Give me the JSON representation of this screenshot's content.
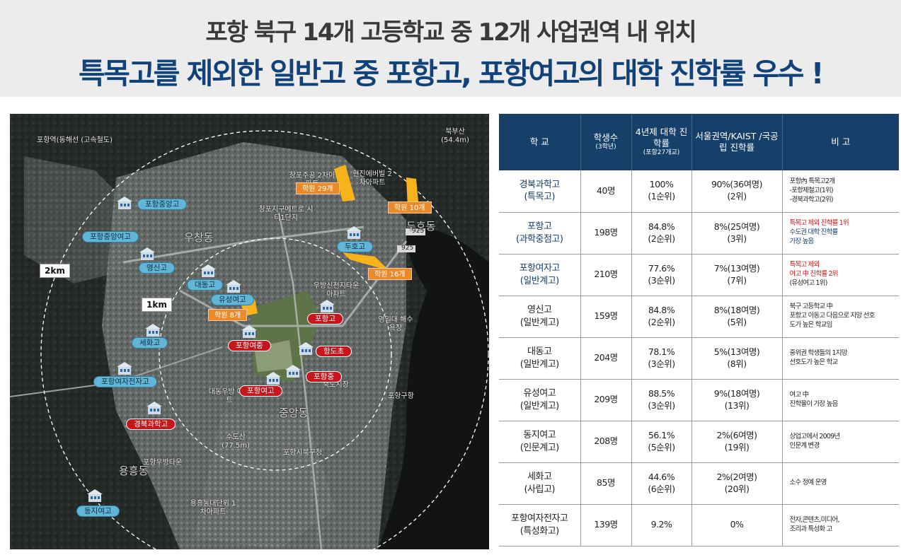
{
  "header": {
    "title_line1": "포항 북구 14개 고등학교 중 12개 사업권역 내 위치",
    "title_line2": "특목고를 제외한 일반고 중 포항고, 포항여고의 대학 진학률 우수 !"
  },
  "map": {
    "rings": [
      "2km",
      "1km"
    ],
    "places": {
      "station": "포항역(동해선 (고속철도)",
      "dusan": "북부산 (54.4m)",
      "dwell1": "창포주공 2차아파트",
      "dwell2": "현진에버빌 2차아파트",
      "dwell3": "창포지구메트로 시티1단지",
      "uchang": "우창동",
      "duho": "두호동",
      "woobang": "우방신천지타운 아파트",
      "yeonil": "영일대 해수욕장",
      "daedong": "대동우방 아파트",
      "jungang": "중앙동",
      "sunosan": "수도산 (77.5m)",
      "bukgu_office": "포항시북구청",
      "woobang_town": "포항우방타운",
      "yongheung": "용흥동",
      "yongheung_apt": "용흥동대단위 1차아파트",
      "port": "포항구항",
      "market": "죽도시장",
      "road925a": "925",
      "road925b": "925",
      "road925c": "925"
    },
    "schools": {
      "pohang_jungang": "포항중앙고",
      "pohang_jungang_girls": "포항중앙여고",
      "yeongsin": "영신고",
      "daedong": "대동고",
      "yuseong": "유성여고",
      "seha": "세화고",
      "pohang_girls_elec": "포항여자전자고",
      "gyeongbuk_sci": "경북과학고",
      "donggi": "동지여고",
      "duho": "두호고",
      "pohang_high": "포항고",
      "pohang_girls_mid": "포항여중",
      "hangdo": "항도초",
      "pohang_mid": "포항중",
      "pohang_girls_high": "포항여고"
    },
    "academies": {
      "a29": "학원 29개",
      "a10": "학원 10개",
      "a16": "학원 16개",
      "a8": "학원 8개"
    },
    "colors": {
      "academy": "#e98b2a",
      "school_red": "#c4161c",
      "school_blue": "#63b5d5"
    }
  },
  "table": {
    "headers": {
      "school": "학 교",
      "students": "학생수",
      "students_sub": "(3학년)",
      "univ": "4년제 대학 진학률",
      "univ_sub": "(포항27개교)",
      "seoul": "서울권역/KAIST /국공립 진학률",
      "note": "비 고"
    },
    "rows": [
      {
        "name": "경북과학고",
        "type": "(특목고)",
        "students": "40명",
        "univ": "100%",
        "univ_rank": "(1순위)",
        "seoul": "90%(36여명)",
        "seoul_rank": "(2위)",
        "notes": [
          {
            "t": "포항內 특목고2개",
            "c": "black"
          },
          {
            "t": "-포항제철고(1위)",
            "c": "black"
          },
          {
            "t": "-경북과학고(2위)",
            "c": "black"
          }
        ]
      },
      {
        "name": "포항고",
        "type": "(과학중점고)",
        "students": "198명",
        "univ": "84.8%",
        "univ_rank": "(2순위)",
        "seoul": "8%(25여명)",
        "seoul_rank": "(3위)",
        "notes": [
          {
            "t": "특목고 제외 진학률 1위",
            "c": "red"
          },
          {
            "t": "수도권 대학 진학률",
            "c": "navy"
          },
          {
            "t": "가장 높음",
            "c": "navy"
          }
        ]
      },
      {
        "name": "포항여자고",
        "type": "(일반계고)",
        "students": "210명",
        "univ": "77.6%",
        "univ_rank": "(3순위)",
        "seoul": "7%(13여명)",
        "seoul_rank": "(7위)",
        "notes": [
          {
            "t": "특목고 제외",
            "c": "red"
          },
          {
            "t": "여고 中 진학률 2위",
            "c": "red"
          },
          {
            "t": "(유성여고 1위)",
            "c": "black"
          }
        ]
      },
      {
        "name": "영신고",
        "type": "(일반계고)",
        "students": "159명",
        "univ": "84.8%",
        "univ_rank": "(2순위)",
        "seoul": "8%(18여명)",
        "seoul_rank": "(5위)",
        "notes": [
          {
            "t": "북구 고등학교 中",
            "c": "black"
          },
          {
            "t": "포항고 이동고 다음으로 지망 선호",
            "c": "black"
          },
          {
            "t": "도가 높은 학교임",
            "c": "black"
          }
        ]
      },
      {
        "name": "대동고",
        "type": "(일반계고)",
        "students": "204명",
        "univ": "78.1%",
        "univ_rank": "(3순위)",
        "seoul": "5%(13여명)",
        "seoul_rank": "(8위)",
        "notes": [
          {
            "t": "중위권 학생들의 1지망",
            "c": "black"
          },
          {
            "t": "선호도가 높은 학교",
            "c": "black"
          }
        ]
      },
      {
        "name": "유성여고",
        "type": "(일반계고)",
        "students": "209명",
        "univ": "88.5%",
        "univ_rank": "(3순위)",
        "seoul": "9%(18여명)",
        "seoul_rank": "(13위)",
        "notes": [
          {
            "t": "여고 中",
            "c": "black"
          },
          {
            "t": "진학율이 가장 높음",
            "c": "black"
          }
        ]
      },
      {
        "name": "동지여고",
        "type": "(인문계고)",
        "students": "208명",
        "univ": "56.1%",
        "univ_rank": "(5순위)",
        "seoul": "2%(6여명)",
        "seoul_rank": "(19위)",
        "notes": [
          {
            "t": "상업고에서 2009년",
            "c": "black"
          },
          {
            "t": "인문계 변경",
            "c": "black"
          }
        ]
      },
      {
        "name": "세화고",
        "type": "(사립고)",
        "students": "85명",
        "univ": "44.6%",
        "univ_rank": "(6순위)",
        "seoul": "2%(2여명)",
        "seoul_rank": "(20위)",
        "notes": [
          {
            "t": "소수 정예 운영",
            "c": "black"
          }
        ]
      },
      {
        "name": "포항여자전자고",
        "type": "(특성화고)",
        "students": "139명",
        "univ": "9.2%",
        "univ_rank": "",
        "seoul": "0%",
        "seoul_rank": "",
        "notes": [
          {
            "t": "전자,콘텐츠,미디어,",
            "c": "black"
          },
          {
            "t": "조리과 특성화 고",
            "c": "black"
          }
        ]
      }
    ]
  }
}
